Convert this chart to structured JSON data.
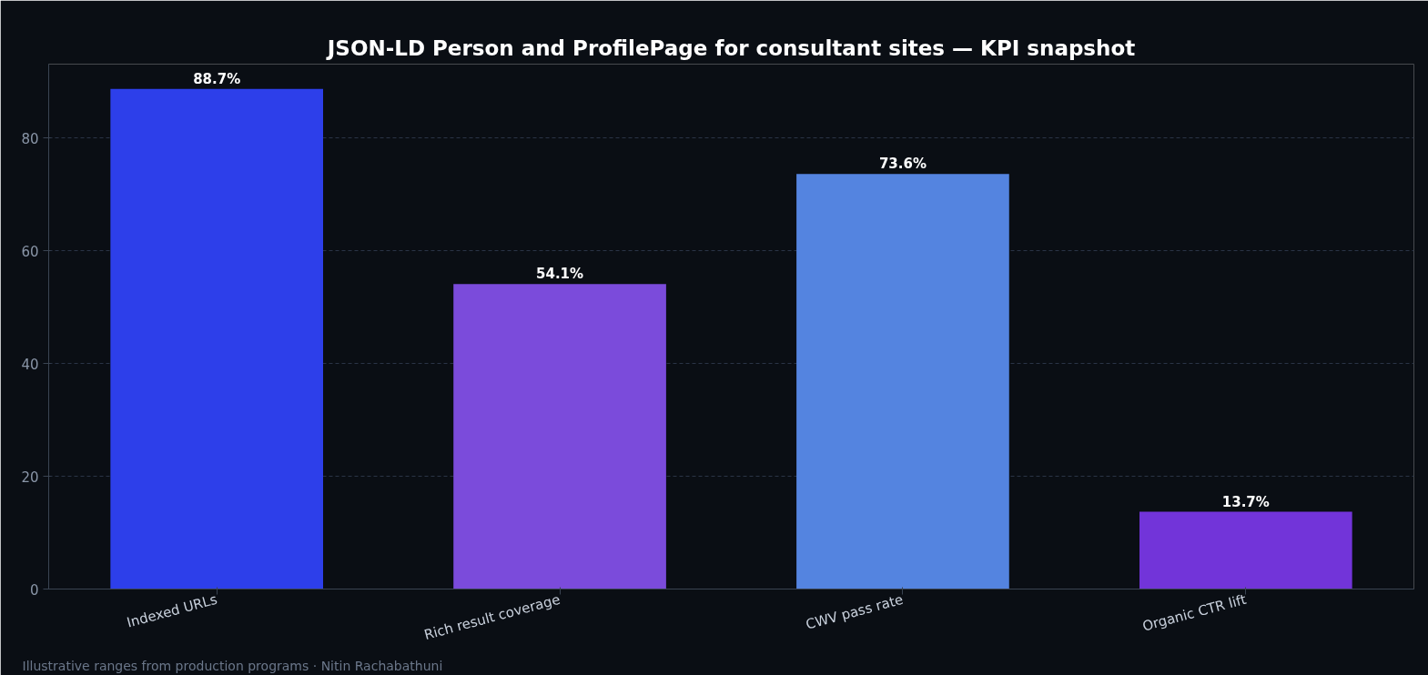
{
  "chart_data": {
    "type": "bar",
    "title": "JSON-LD Person and ProfilePage for consultant sites — KPI snapshot",
    "categories": [
      "Indexed URLs",
      "Rich result coverage",
      "CWV pass rate",
      "Organic CTR lift"
    ],
    "values": [
      88.7,
      54.1,
      73.6,
      13.7
    ],
    "colors": [
      "#2d3fea",
      "#7b4bdb",
      "#5484e0",
      "#7234d9"
    ],
    "value_labels": [
      "88.7%",
      "54.1%",
      "73.6%",
      "13.7%"
    ],
    "ylim": [
      0,
      93.1
    ],
    "yticks": [
      0,
      20,
      40,
      60,
      80
    ],
    "grid": "y",
    "annotations": [
      "Illustrative ranges from production programs · Nitin Rachabathuni"
    ]
  }
}
